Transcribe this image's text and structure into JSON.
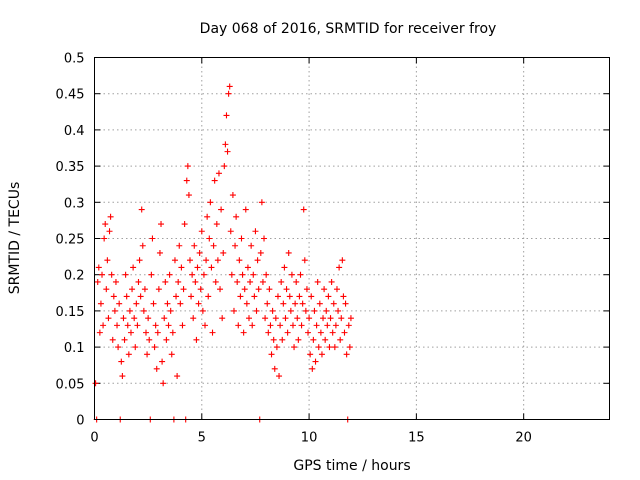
{
  "chart_data": {
    "type": "scatter",
    "title": "Day 068 of 2016, SRMTID for receiver froy",
    "xlabel": "GPS time / hours",
    "ylabel": "SRMTID / TECUs",
    "xlim": [
      0,
      24
    ],
    "ylim": [
      0,
      0.5
    ],
    "x_ticks": [
      0,
      5,
      10,
      15,
      20
    ],
    "x_tick_labels": [
      "0",
      "5",
      "10",
      "15",
      "20"
    ],
    "y_ticks": [
      0,
      0.05,
      0.1,
      0.15,
      0.2,
      0.25,
      0.3,
      0.35,
      0.4,
      0.45,
      0.5
    ],
    "y_tick_labels": [
      "0",
      "0.05",
      "0.1",
      "0.15",
      "0.2",
      "0.25",
      "0.3",
      "0.35",
      "0.4",
      "0.45",
      "0.5"
    ],
    "grid": true,
    "marker": "+",
    "color": "#ff0000",
    "series": [
      {
        "name": "SRMTID",
        "points": [
          [
            0.05,
            0.05
          ],
          [
            0.1,
            0.0
          ],
          [
            0.15,
            0.19
          ],
          [
            0.2,
            0.21
          ],
          [
            0.25,
            0.12
          ],
          [
            0.3,
            0.16
          ],
          [
            0.35,
            0.2
          ],
          [
            0.4,
            0.13
          ],
          [
            0.45,
            0.25
          ],
          [
            0.5,
            0.27
          ],
          [
            0.55,
            0.18
          ],
          [
            0.6,
            0.22
          ],
          [
            0.65,
            0.14
          ],
          [
            0.7,
            0.26
          ],
          [
            0.75,
            0.28
          ],
          [
            0.8,
            0.2
          ],
          [
            0.85,
            0.11
          ],
          [
            0.9,
            0.17
          ],
          [
            0.95,
            0.15
          ],
          [
            1.0,
            0.19
          ],
          [
            1.05,
            0.13
          ],
          [
            1.1,
            0.1
          ],
          [
            1.15,
            0.16
          ],
          [
            1.2,
            0.0
          ],
          [
            1.25,
            0.08
          ],
          [
            1.3,
            0.06
          ],
          [
            1.35,
            0.14
          ],
          [
            1.4,
            0.11
          ],
          [
            1.45,
            0.2
          ],
          [
            1.5,
            0.17
          ],
          [
            1.55,
            0.13
          ],
          [
            1.6,
            0.09
          ],
          [
            1.65,
            0.15
          ],
          [
            1.7,
            0.12
          ],
          [
            1.75,
            0.18
          ],
          [
            1.8,
            0.21
          ],
          [
            1.85,
            0.14
          ],
          [
            1.9,
            0.1
          ],
          [
            1.95,
            0.16
          ],
          [
            2.0,
            0.13
          ],
          [
            2.05,
            0.19
          ],
          [
            2.1,
            0.22
          ],
          [
            2.15,
            0.17
          ],
          [
            2.2,
            0.29
          ],
          [
            2.25,
            0.24
          ],
          [
            2.3,
            0.15
          ],
          [
            2.35,
            0.18
          ],
          [
            2.4,
            0.12
          ],
          [
            2.45,
            0.09
          ],
          [
            2.5,
            0.14
          ],
          [
            2.55,
            0.11
          ],
          [
            2.6,
            0.0
          ],
          [
            2.65,
            0.2
          ],
          [
            2.7,
            0.25
          ],
          [
            2.75,
            0.16
          ],
          [
            2.8,
            0.1
          ],
          [
            2.85,
            0.13
          ],
          [
            2.9,
            0.07
          ],
          [
            2.95,
            0.12
          ],
          [
            3.0,
            0.18
          ],
          [
            3.05,
            0.23
          ],
          [
            3.1,
            0.27
          ],
          [
            3.15,
            0.08
          ],
          [
            3.2,
            0.05
          ],
          [
            3.25,
            0.14
          ],
          [
            3.3,
            0.19
          ],
          [
            3.35,
            0.11
          ],
          [
            3.4,
            0.16
          ],
          [
            3.45,
            0.13
          ],
          [
            3.5,
            0.2
          ],
          [
            3.55,
            0.15
          ],
          [
            3.6,
            0.09
          ],
          [
            3.65,
            0.12
          ],
          [
            3.7,
            0.0
          ],
          [
            3.75,
            0.22
          ],
          [
            3.8,
            0.17
          ],
          [
            3.85,
            0.06
          ],
          [
            3.9,
            0.19
          ],
          [
            3.95,
            0.24
          ],
          [
            4.0,
            0.16
          ],
          [
            4.05,
            0.21
          ],
          [
            4.1,
            0.13
          ],
          [
            4.15,
            0.18
          ],
          [
            4.2,
            0.27
          ],
          [
            4.25,
            0.0
          ],
          [
            4.3,
            0.33
          ],
          [
            4.35,
            0.35
          ],
          [
            4.4,
            0.31
          ],
          [
            4.45,
            0.22
          ],
          [
            4.5,
            0.17
          ],
          [
            4.55,
            0.2
          ],
          [
            4.6,
            0.14
          ],
          [
            4.65,
            0.24
          ],
          [
            4.7,
            0.19
          ],
          [
            4.75,
            0.11
          ],
          [
            4.8,
            0.21
          ],
          [
            4.85,
            0.16
          ],
          [
            4.9,
            0.23
          ],
          [
            4.95,
            0.18
          ],
          [
            5.0,
            0.26
          ],
          [
            5.05,
            0.15
          ],
          [
            5.1,
            0.2
          ],
          [
            5.15,
            0.13
          ],
          [
            5.2,
            0.22
          ],
          [
            5.25,
            0.28
          ],
          [
            5.3,
            0.17
          ],
          [
            5.35,
            0.25
          ],
          [
            5.4,
            0.3
          ],
          [
            5.45,
            0.21
          ],
          [
            5.5,
            0.12
          ],
          [
            5.55,
            0.24
          ],
          [
            5.6,
            0.33
          ],
          [
            5.65,
            0.19
          ],
          [
            5.7,
            0.27
          ],
          [
            5.75,
            0.22
          ],
          [
            5.8,
            0.34
          ],
          [
            5.85,
            0.18
          ],
          [
            5.9,
            0.29
          ],
          [
            5.95,
            0.14
          ],
          [
            6.0,
            0.23
          ],
          [
            6.05,
            0.35
          ],
          [
            6.1,
            0.38
          ],
          [
            6.15,
            0.42
          ],
          [
            6.2,
            0.37
          ],
          [
            6.25,
            0.45
          ],
          [
            6.3,
            0.46
          ],
          [
            6.35,
            0.26
          ],
          [
            6.4,
            0.2
          ],
          [
            6.45,
            0.31
          ],
          [
            6.5,
            0.15
          ],
          [
            6.55,
            0.24
          ],
          [
            6.6,
            0.28
          ],
          [
            6.65,
            0.19
          ],
          [
            6.7,
            0.13
          ],
          [
            6.75,
            0.22
          ],
          [
            6.8,
            0.17
          ],
          [
            6.85,
            0.25
          ],
          [
            6.9,
            0.2
          ],
          [
            6.95,
            0.12
          ],
          [
            7.0,
            0.18
          ],
          [
            7.05,
            0.29
          ],
          [
            7.1,
            0.16
          ],
          [
            7.15,
            0.21
          ],
          [
            7.2,
            0.14
          ],
          [
            7.25,
            0.19
          ],
          [
            7.3,
            0.24
          ],
          [
            7.35,
            0.13
          ],
          [
            7.4,
            0.2
          ],
          [
            7.45,
            0.17
          ],
          [
            7.5,
            0.26
          ],
          [
            7.55,
            0.15
          ],
          [
            7.6,
            0.22
          ],
          [
            7.65,
            0.18
          ],
          [
            7.7,
            0.0
          ],
          [
            7.75,
            0.23
          ],
          [
            7.8,
            0.3
          ],
          [
            7.85,
            0.19
          ],
          [
            7.9,
            0.25
          ],
          [
            7.95,
            0.14
          ],
          [
            8.0,
            0.2
          ],
          [
            8.05,
            0.16
          ],
          [
            8.1,
            0.12
          ],
          [
            8.15,
            0.18
          ],
          [
            8.2,
            0.13
          ],
          [
            8.25,
            0.09
          ],
          [
            8.3,
            0.15
          ],
          [
            8.35,
            0.11
          ],
          [
            8.4,
            0.07
          ],
          [
            8.45,
            0.14
          ],
          [
            8.5,
            0.1
          ],
          [
            8.55,
            0.17
          ],
          [
            8.6,
            0.06
          ],
          [
            8.65,
            0.13
          ],
          [
            8.7,
            0.19
          ],
          [
            8.75,
            0.11
          ],
          [
            8.8,
            0.16
          ],
          [
            8.85,
            0.21
          ],
          [
            8.9,
            0.14
          ],
          [
            8.95,
            0.18
          ],
          [
            9.0,
            0.12
          ],
          [
            9.05,
            0.23
          ],
          [
            9.1,
            0.17
          ],
          [
            9.15,
            0.15
          ],
          [
            9.2,
            0.2
          ],
          [
            9.25,
            0.13
          ],
          [
            9.3,
            0.1
          ],
          [
            9.35,
            0.16
          ],
          [
            9.4,
            0.19
          ],
          [
            9.45,
            0.14
          ],
          [
            9.5,
            0.11
          ],
          [
            9.55,
            0.17
          ],
          [
            9.6,
            0.2
          ],
          [
            9.65,
            0.13
          ],
          [
            9.7,
            0.16
          ],
          [
            9.75,
            0.29
          ],
          [
            9.8,
            0.22
          ],
          [
            9.85,
            0.15
          ],
          [
            9.9,
            0.18
          ],
          [
            9.95,
            0.12
          ],
          [
            10.0,
            0.14
          ],
          [
            10.05,
            0.09
          ],
          [
            10.1,
            0.17
          ],
          [
            10.15,
            0.07
          ],
          [
            10.2,
            0.11
          ],
          [
            10.25,
            0.15
          ],
          [
            10.3,
            0.08
          ],
          [
            10.35,
            0.13
          ],
          [
            10.4,
            0.19
          ],
          [
            10.45,
            0.1
          ],
          [
            10.5,
            0.16
          ],
          [
            10.55,
            0.12
          ],
          [
            10.6,
            0.09
          ],
          [
            10.65,
            0.14
          ],
          [
            10.7,
            0.18
          ],
          [
            10.75,
            0.11
          ],
          [
            10.8,
            0.15
          ],
          [
            10.85,
            0.13
          ],
          [
            10.9,
            0.17
          ],
          [
            10.95,
            0.1
          ],
          [
            11.0,
            0.14
          ],
          [
            11.05,
            0.19
          ],
          [
            11.1,
            0.12
          ],
          [
            11.15,
            0.16
          ],
          [
            11.2,
            0.1
          ],
          [
            11.25,
            0.13
          ],
          [
            11.3,
            0.18
          ],
          [
            11.35,
            0.15
          ],
          [
            11.4,
            0.21
          ],
          [
            11.45,
            0.11
          ],
          [
            11.5,
            0.14
          ],
          [
            11.55,
            0.22
          ],
          [
            11.6,
            0.17
          ],
          [
            11.65,
            0.12
          ],
          [
            11.7,
            0.16
          ],
          [
            11.75,
            0.09
          ],
          [
            11.8,
            0.0
          ],
          [
            11.85,
            0.13
          ],
          [
            11.9,
            0.1
          ],
          [
            11.95,
            0.14
          ]
        ]
      }
    ]
  }
}
